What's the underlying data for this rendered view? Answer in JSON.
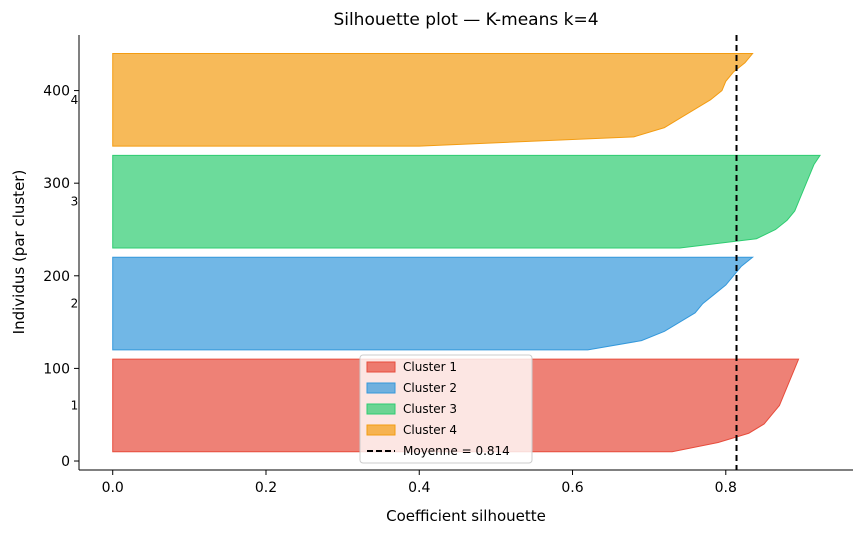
{
  "chart_data": {
    "type": "silhouette",
    "title": "Silhouette plot — K-means k=4",
    "x_label": "Coefficient silhouette",
    "y_label": "Individus (par cluster)",
    "xlim": [
      -0.044,
      0.966
    ],
    "ylim": [
      -9.7,
      460
    ],
    "xticks": [
      {
        "value": 0,
        "label": "0.0"
      },
      0.2,
      0.4,
      0.6,
      0.8
    ],
    "yticks": [
      0,
      100,
      200,
      300,
      400
    ],
    "cluster_labels": [
      "1",
      "2",
      "3",
      "4"
    ],
    "series": [
      {
        "name": "Cluster 1",
        "color": "#e74c3c",
        "y": [
          10,
          20,
          30,
          40,
          50,
          60,
          70,
          80,
          90,
          100,
          110
        ],
        "values": [
          0.73,
          0.79,
          0.83,
          0.85,
          0.86,
          0.87,
          0.875,
          0.88,
          0.885,
          0.89,
          0.895
        ]
      },
      {
        "name": "Cluster 2",
        "color": "#3498db",
        "y": [
          120,
          130,
          140,
          150,
          160,
          170,
          180,
          190,
          200,
          210,
          220
        ],
        "values": [
          0.62,
          0.69,
          0.72,
          0.74,
          0.76,
          0.77,
          0.785,
          0.8,
          0.81,
          0.82,
          0.835
        ]
      },
      {
        "name": "Cluster 3",
        "color": "#2ecc71",
        "y": [
          230,
          240,
          250,
          260,
          270,
          280,
          290,
          300,
          310,
          320,
          330
        ],
        "values": [
          0.74,
          0.84,
          0.865,
          0.88,
          0.89,
          0.895,
          0.9,
          0.905,
          0.91,
          0.915,
          0.923
        ]
      },
      {
        "name": "Cluster 4",
        "color": "#f39c12",
        "y": [
          340,
          350,
          360,
          370,
          380,
          390,
          400,
          410,
          420,
          430,
          440
        ],
        "values": [
          0.4,
          0.68,
          0.72,
          0.74,
          0.76,
          0.78,
          0.795,
          0.8,
          0.81,
          0.825,
          0.835
        ]
      }
    ],
    "mean": 0.814,
    "mean_label": "Moyenne = 0.814",
    "mean_color": "#000000",
    "grid": false,
    "legend": "lower center"
  }
}
